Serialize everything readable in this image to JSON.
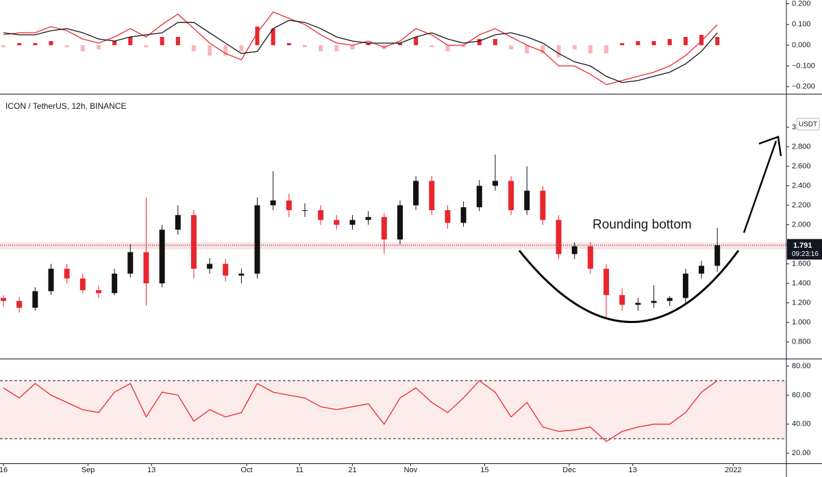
{
  "chart_data": [
    {
      "type": "macd",
      "xlim": [
        -0.648,
        148.06
      ],
      "ylim": [
        -0.234,
        0.218
      ],
      "yticks": [
        {
          "value": 0.2,
          "label": "0.200"
        },
        {
          "value": 0.1,
          "label": "0.100"
        },
        {
          "value": 0,
          "label": "0.000"
        },
        {
          "value": -0.1,
          "label": "−0.100"
        },
        {
          "value": -0.2,
          "label": "−0.200"
        }
      ],
      "x": [
        0,
        3,
        6,
        9,
        12,
        15,
        18,
        21,
        24,
        27,
        30,
        33,
        36,
        39,
        42,
        45,
        48,
        51,
        54,
        57,
        60,
        63,
        66,
        69,
        72,
        75,
        78,
        81,
        84,
        87,
        90,
        93,
        96,
        99,
        102,
        105,
        108,
        111,
        114,
        117,
        120,
        123,
        126,
        129,
        132,
        135
      ],
      "histogram": [
        -0.01,
        0.01,
        0.01,
        0.02,
        -0.01,
        -0.03,
        -0.02,
        0.02,
        0.04,
        -0.01,
        0.04,
        0.04,
        -0.03,
        -0.05,
        -0.05,
        -0.03,
        0.09,
        0.08,
        0.01,
        -0.01,
        -0.03,
        -0.03,
        -0.02,
        0.01,
        -0.02,
        0.01,
        0.04,
        -0.01,
        -0.03,
        -0.01,
        0.03,
        0.03,
        -0.02,
        -0.04,
        -0.04,
        -0.06,
        -0.02,
        -0.04,
        -0.04,
        0.01,
        0.02,
        0.02,
        0.03,
        0.04,
        0.05,
        0.04
      ],
      "histogram_colors": {
        "positive": "#e8262e",
        "negative": "#f7b7b9"
      },
      "series": [
        {
          "color": "#e8262e",
          "values": [
            0.05,
            0.06,
            0.06,
            0.09,
            0.07,
            0.03,
            0.01,
            0.04,
            0.08,
            0.04,
            0.1,
            0.15,
            0.08,
            0.01,
            -0.04,
            -0.07,
            0.06,
            0.16,
            0.13,
            0.1,
            0.05,
            0.01,
            0.0,
            0.02,
            -0.01,
            0.02,
            0.08,
            0.05,
            0.0,
            0.0,
            0.05,
            0.08,
            0.04,
            0.0,
            -0.03,
            -0.1,
            -0.1,
            -0.14,
            -0.19,
            -0.17,
            -0.15,
            -0.13,
            -0.1,
            -0.05,
            0.02,
            0.1
          ]
        },
        {
          "color": "#111111",
          "values": [
            0.06,
            0.05,
            0.05,
            0.07,
            0.08,
            0.06,
            0.03,
            0.02,
            0.04,
            0.05,
            0.06,
            0.11,
            0.11,
            0.06,
            0.01,
            -0.04,
            -0.03,
            0.08,
            0.12,
            0.11,
            0.08,
            0.04,
            0.02,
            0.01,
            0.01,
            0.01,
            0.04,
            0.06,
            0.03,
            0.01,
            0.02,
            0.05,
            0.06,
            0.04,
            0.01,
            -0.04,
            -0.08,
            -0.1,
            -0.15,
            -0.18,
            -0.17,
            -0.15,
            -0.13,
            -0.09,
            -0.03,
            0.06
          ]
        }
      ]
    },
    {
      "type": "candlestick",
      "title": "ICON / TetherUS, 12h, BINANCE",
      "unit": "USDT",
      "annotation": "Rounding bottom",
      "last_price": 1.791,
      "countdown": "09:23:16",
      "zone": [
        1.75,
        1.82
      ],
      "up_color": "#111111",
      "down_color": "#e8262e",
      "xlim": [
        -0.648,
        148.06
      ],
      "ylim": [
        0.629,
        3.336
      ],
      "yticks": [
        {
          "value": 3,
          "label": "3.000"
        },
        {
          "value": 2.8,
          "label": "2.800"
        },
        {
          "value": 2.6,
          "label": "2.600"
        },
        {
          "value": 2.4,
          "label": "2.400"
        },
        {
          "value": 2.2,
          "label": "2.200"
        },
        {
          "value": 2,
          "label": "2.000"
        },
        {
          "value": 1.8,
          "label": "1.800"
        },
        {
          "value": 1.6,
          "label": "1.600"
        },
        {
          "value": 1.4,
          "label": "1.400"
        },
        {
          "value": 1.2,
          "label": "1.200"
        },
        {
          "value": 1,
          "label": "1.000"
        },
        {
          "value": 0.8,
          "label": "0.800"
        }
      ],
      "x": [
        0,
        3,
        6,
        9,
        12,
        15,
        18,
        21,
        24,
        27,
        30,
        33,
        36,
        39,
        42,
        45,
        48,
        51,
        54,
        57,
        60,
        63,
        66,
        69,
        72,
        75,
        78,
        81,
        84,
        87,
        90,
        93,
        96,
        99,
        102,
        105,
        108,
        111,
        114,
        117,
        120,
        123,
        126,
        129,
        132,
        135
      ],
      "open": [
        1.25,
        1.22,
        1.15,
        1.32,
        1.55,
        1.45,
        1.33,
        1.3,
        1.5,
        1.72,
        1.4,
        1.95,
        2.1,
        1.55,
        1.6,
        1.48,
        1.5,
        2.2,
        2.25,
        2.15,
        2.15,
        2.05,
        2.0,
        2.05,
        2.08,
        1.85,
        2.2,
        2.45,
        2.15,
        2.02,
        2.18,
        2.4,
        2.45,
        2.15,
        2.35,
        2.05,
        1.7,
        1.78,
        1.55,
        1.28,
        1.18,
        1.2,
        1.22,
        1.25,
        1.5,
        1.58
      ],
      "high": [
        1.28,
        1.26,
        1.36,
        1.6,
        1.6,
        1.5,
        1.38,
        1.55,
        1.8,
        2.28,
        2.0,
        2.2,
        2.15,
        1.66,
        1.65,
        1.55,
        2.28,
        2.55,
        2.32,
        2.22,
        2.2,
        2.1,
        2.1,
        2.14,
        2.12,
        2.25,
        2.5,
        2.5,
        2.2,
        2.24,
        2.46,
        2.72,
        2.5,
        2.6,
        2.4,
        2.1,
        1.82,
        1.82,
        1.6,
        1.35,
        1.25,
        1.38,
        1.27,
        1.55,
        1.63,
        1.97
      ],
      "low": [
        1.16,
        1.1,
        1.12,
        1.28,
        1.4,
        1.3,
        1.25,
        1.28,
        1.46,
        1.17,
        1.36,
        1.9,
        1.45,
        1.5,
        1.42,
        1.4,
        1.45,
        2.15,
        2.08,
        2.08,
        2.0,
        1.95,
        1.95,
        2.0,
        1.7,
        1.8,
        2.15,
        2.1,
        1.96,
        1.98,
        2.14,
        2.35,
        2.1,
        2.1,
        2.0,
        1.65,
        1.65,
        1.5,
        1.05,
        1.12,
        1.12,
        1.15,
        1.17,
        1.2,
        1.45,
        1.52
      ],
      "close": [
        1.22,
        1.15,
        1.32,
        1.55,
        1.45,
        1.33,
        1.3,
        1.5,
        1.72,
        1.4,
        1.95,
        2.1,
        1.55,
        1.6,
        1.48,
        1.5,
        2.2,
        2.25,
        2.15,
        2.15,
        2.05,
        2.0,
        2.05,
        2.08,
        1.85,
        2.2,
        2.45,
        2.15,
        2.02,
        2.18,
        2.4,
        2.45,
        2.15,
        2.35,
        2.05,
        1.7,
        1.78,
        1.55,
        1.28,
        1.18,
        1.2,
        1.22,
        1.25,
        1.5,
        1.58,
        1.791
      ]
    },
    {
      "type": "rsi",
      "color": "#e8262e",
      "band_color": "#fdecec",
      "levels": [
        70,
        30
      ],
      "xlim": [
        -0.648,
        148.06
      ],
      "ylim": [
        13,
        84.7
      ],
      "yticks": [
        {
          "value": 80,
          "label": "80.00"
        },
        {
          "value": 60,
          "label": "60.00"
        },
        {
          "value": 40,
          "label": "40.00"
        },
        {
          "value": 20,
          "label": "20.00"
        }
      ],
      "xticks": [
        {
          "value": 0,
          "label": "16"
        },
        {
          "value": 16,
          "label": "Sep"
        },
        {
          "value": 28,
          "label": "13"
        },
        {
          "value": 46,
          "label": "Oct"
        },
        {
          "value": 56,
          "label": "11"
        },
        {
          "value": 66,
          "label": "21"
        },
        {
          "value": 77,
          "label": "Nov"
        },
        {
          "value": 91,
          "label": "15"
        },
        {
          "value": 107,
          "label": "Dec"
        },
        {
          "value": 119,
          "label": "13"
        },
        {
          "value": 138,
          "label": "2022"
        }
      ],
      "x": [
        0,
        3,
        6,
        9,
        12,
        15,
        18,
        21,
        24,
        27,
        30,
        33,
        36,
        39,
        42,
        45,
        48,
        51,
        54,
        57,
        60,
        63,
        66,
        69,
        72,
        75,
        78,
        81,
        84,
        87,
        90,
        93,
        96,
        99,
        102,
        105,
        108,
        111,
        114,
        117,
        120,
        123,
        126,
        129,
        132,
        135
      ],
      "values": [
        65,
        58,
        68,
        60,
        55,
        50,
        48,
        62,
        68,
        45,
        62,
        60,
        42,
        50,
        45,
        48,
        68,
        62,
        60,
        58,
        52,
        50,
        52,
        54,
        40,
        58,
        65,
        55,
        48,
        58,
        70,
        62,
        45,
        55,
        38,
        35,
        36,
        38,
        28,
        35,
        38,
        40,
        40,
        48,
        62,
        70
      ]
    }
  ]
}
